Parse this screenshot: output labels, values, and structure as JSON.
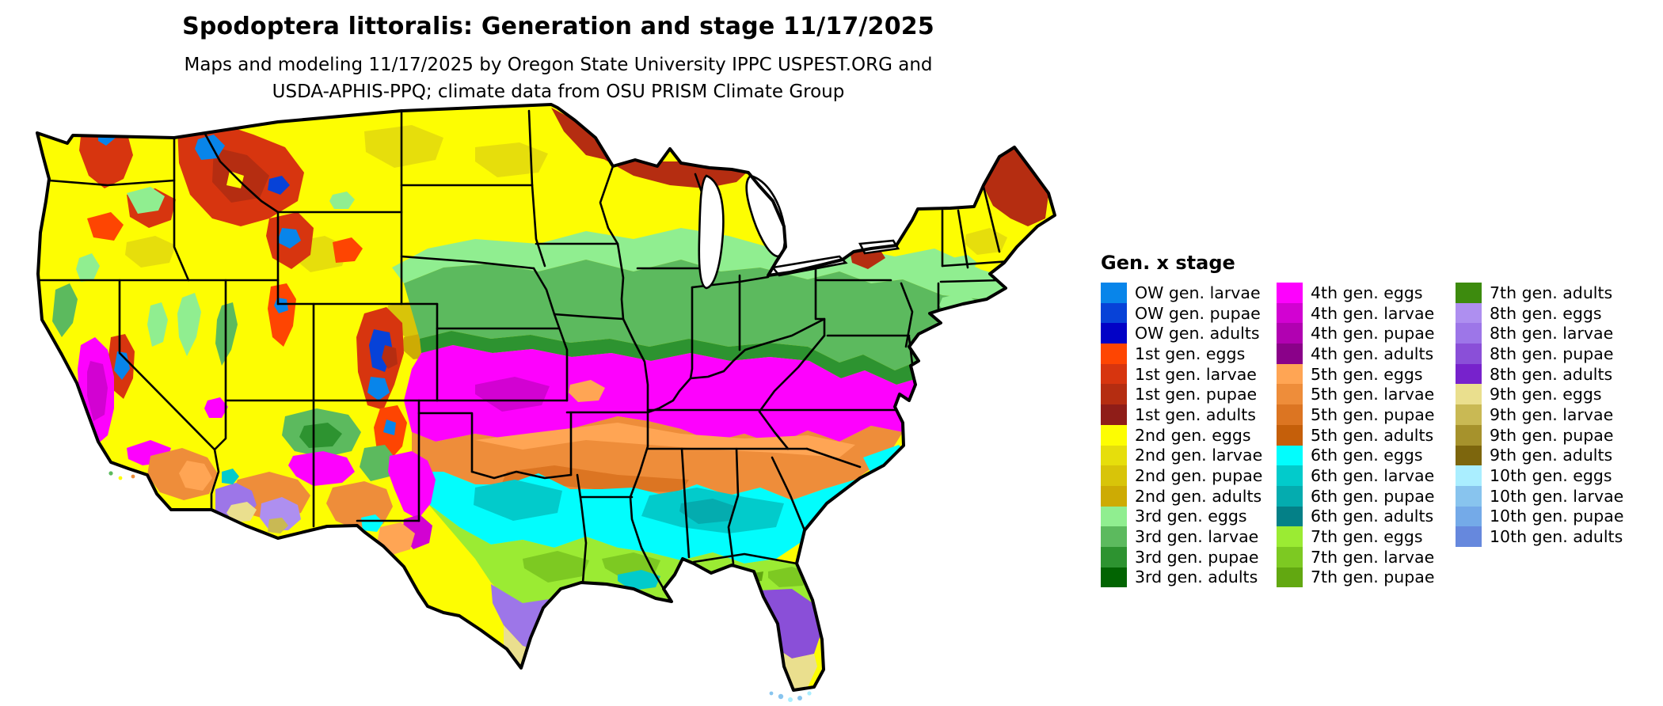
{
  "header": {
    "title": "Spodoptera littoralis: Generation and stage 11/17/2025",
    "subtitle_line1": "Maps and modeling 11/17/2025 by Oregon State University IPPC USPEST.ORG and",
    "subtitle_line2": "USDA-APHIS-PPQ; climate data from OSU PRISM Climate Group"
  },
  "legend": {
    "title": "Gen. x stage",
    "columns": [
      [
        {
          "label": "OW gen. larvae",
          "key": "ow_larvae"
        },
        {
          "label": "OW gen. pupae",
          "key": "ow_pupae"
        },
        {
          "label": "OW gen. adults",
          "key": "ow_adults"
        },
        {
          "label": "1st gen. eggs",
          "key": "g1_eggs"
        },
        {
          "label": "1st gen. larvae",
          "key": "g1_larvae"
        },
        {
          "label": "1st gen. pupae",
          "key": "g1_pupae"
        },
        {
          "label": "1st gen. adults",
          "key": "g1_adults"
        },
        {
          "label": "2nd gen. eggs",
          "key": "g2_eggs"
        },
        {
          "label": "2nd gen. larvae",
          "key": "g2_larvae"
        },
        {
          "label": "2nd gen. pupae",
          "key": "g2_pupae"
        },
        {
          "label": "2nd gen. adults",
          "key": "g2_adults"
        },
        {
          "label": "3rd gen. eggs",
          "key": "g3_eggs"
        },
        {
          "label": "3rd gen. larvae",
          "key": "g3_larvae"
        },
        {
          "label": "3rd gen. pupae",
          "key": "g3_pupae"
        },
        {
          "label": "3rd gen. adults",
          "key": "g3_adults"
        }
      ],
      [
        {
          "label": "4th gen. eggs",
          "key": "g4_eggs"
        },
        {
          "label": "4th gen. larvae",
          "key": "g4_larvae"
        },
        {
          "label": "4th gen. pupae",
          "key": "g4_pupae"
        },
        {
          "label": "4th gen. adults",
          "key": "g4_adults"
        },
        {
          "label": "5th gen. eggs",
          "key": "g5_eggs"
        },
        {
          "label": "5th gen. larvae",
          "key": "g5_larvae"
        },
        {
          "label": "5th gen. pupae",
          "key": "g5_pupae"
        },
        {
          "label": "5th gen. adults",
          "key": "g5_adults"
        },
        {
          "label": "6th gen. eggs",
          "key": "g6_eggs"
        },
        {
          "label": "6th gen. larvae",
          "key": "g6_larvae"
        },
        {
          "label": "6th gen. pupae",
          "key": "g6_pupae"
        },
        {
          "label": "6th gen. adults",
          "key": "g6_adults"
        },
        {
          "label": "7th gen. eggs",
          "key": "g7_eggs"
        },
        {
          "label": "7th gen. larvae",
          "key": "g7_larvae"
        },
        {
          "label": "7th gen. pupae",
          "key": "g7_pupae"
        }
      ],
      [
        {
          "label": "7th gen. adults",
          "key": "g7_adults"
        },
        {
          "label": "8th gen. eggs",
          "key": "g8_eggs"
        },
        {
          "label": "8th gen. larvae",
          "key": "g8_larvae"
        },
        {
          "label": "8th gen. pupae",
          "key": "g8_pupae"
        },
        {
          "label": "8th gen. adults",
          "key": "g8_adults"
        },
        {
          "label": "9th gen. eggs",
          "key": "g9_eggs"
        },
        {
          "label": "9th gen. larvae",
          "key": "g9_larvae"
        },
        {
          "label": "9th gen. pupae",
          "key": "g9_pupae"
        },
        {
          "label": "9th gen. adults",
          "key": "g9_adults"
        },
        {
          "label": "10th gen. eggs",
          "key": "g10_eggs"
        },
        {
          "label": "10th gen. larvae",
          "key": "g10_larvae"
        },
        {
          "label": "10th gen. pupae",
          "key": "g10_pupae"
        },
        {
          "label": "10th gen. adults",
          "key": "g10_adults"
        }
      ]
    ]
  },
  "palette": {
    "ow_larvae": "#0885EA",
    "ow_pupae": "#0742D8",
    "ow_adults": "#0202C6",
    "g1_eggs": "#FE4502",
    "g1_larvae": "#D7350F",
    "g1_pupae": "#B52D11",
    "g1_adults": "#8F1D18",
    "g2_eggs": "#FDFD02",
    "g2_larvae": "#E6DE0C",
    "g2_pupae": "#D8C409",
    "g2_adults": "#CDAB04",
    "g3_eggs": "#90EE90",
    "g3_larvae": "#5CBA5E",
    "g3_pupae": "#2D9330",
    "g3_adults": "#026402",
    "g4_eggs": "#FD02FD",
    "g4_larvae": "#D202D2",
    "g4_pupae": "#B101B1",
    "g4_adults": "#8A0189",
    "g5_eggs": "#FFA554",
    "g5_larvae": "#EE8D3A",
    "g5_pupae": "#DC7522",
    "g5_adults": "#C55F0A",
    "g6_eggs": "#02FDFD",
    "g6_larvae": "#02CBCB",
    "g6_pupae": "#04ACAF",
    "g6_adults": "#048087",
    "g7_eggs": "#9BEB33",
    "g7_larvae": "#7DC922",
    "g7_pupae": "#62A811",
    "g7_adults": "#3D8B0E",
    "g8_eggs": "#AE8FF0",
    "g8_larvae": "#9D76E8",
    "g8_pupae": "#8A4FD8",
    "g8_adults": "#7722CC",
    "g9_eggs": "#EADF8E",
    "g9_larvae": "#C9B954",
    "g9_pupae": "#A6922C",
    "g9_adults": "#7D660D",
    "g10_eggs": "#AAEEFF",
    "g10_larvae": "#88C4EE",
    "g10_pupae": "#74AAE8",
    "g10_adults": "#6688DD",
    "border": "#000000",
    "water": "#ffffff"
  }
}
